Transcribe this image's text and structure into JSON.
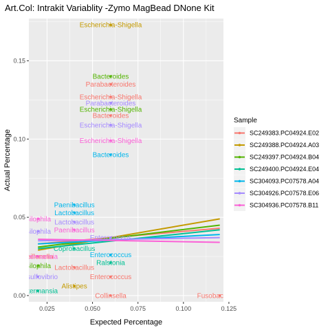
{
  "chart_data": {
    "type": "scatter",
    "title": "Art.Col: Intrakit Variablity -Zymo MagBead DNone Kit",
    "xlabel": "Expected Percentage",
    "ylabel": "Actual Percentage",
    "xlim": [
      0.015,
      0.122
    ],
    "ylim": [
      -0.004,
      0.177
    ],
    "x_ticks": [
      0.025,
      0.05,
      0.075,
      0.1,
      0.125
    ],
    "x_tick_labels": [
      "0.025",
      "0.050",
      "0.075",
      "0.100",
      "0.125"
    ],
    "y_ticks": [
      0.0,
      0.05,
      0.1,
      0.15
    ],
    "y_tick_labels": [
      "0.00",
      "0.05",
      "0.10",
      "0.15"
    ],
    "grid": true,
    "legend": {
      "title": "Sample",
      "position": "right"
    },
    "series": [
      {
        "name": "SC249383.PC04924.E02",
        "color": "#F8766D",
        "trend": [
          [
            0.02,
            0.033
          ],
          [
            0.12,
            0.043
          ]
        ],
        "points": [
          {
            "x": 0.06,
            "y": 0.135,
            "label": "Parabacteroides"
          },
          {
            "x": 0.06,
            "y": 0.127,
            "label": "Escherichia-Shigella"
          },
          {
            "x": 0.06,
            "y": 0.115,
            "label": "Bacteroides"
          },
          {
            "x": 0.06,
            "y": 0.012,
            "label": "Enterococcus"
          },
          {
            "x": 0.06,
            "y": 0.0,
            "label": "Collinsella"
          },
          {
            "x": 0.04,
            "y": 0.018,
            "label": "Lactobacillus"
          },
          {
            "x": 0.12,
            "y": 0.0,
            "label": "Fusobacterium"
          },
          {
            "x": 0.02,
            "y": 0.025,
            "label": "Veillonella"
          }
        ]
      },
      {
        "name": "SC249388.PC04924.A03",
        "color": "#C49A00",
        "trend": [
          [
            0.02,
            0.029
          ],
          [
            0.12,
            0.049
          ]
        ],
        "points": [
          {
            "x": 0.06,
            "y": 0.173,
            "label": "Escherichia-Shigella"
          },
          {
            "x": 0.04,
            "y": 0.006,
            "label": "Alistipes"
          }
        ]
      },
      {
        "name": "SC249397.PC04924.B04",
        "color": "#53B400",
        "trend": [
          [
            0.02,
            0.031
          ],
          [
            0.12,
            0.045
          ]
        ],
        "points": [
          {
            "x": 0.06,
            "y": 0.14,
            "label": "Bacteroides"
          },
          {
            "x": 0.06,
            "y": 0.119,
            "label": "Escherichia-Shigella"
          },
          {
            "x": 0.02,
            "y": 0.019,
            "label": "Bilophila"
          }
        ]
      },
      {
        "name": "SC249400.PC04924.E04",
        "color": "#00C094",
        "trend": [
          [
            0.02,
            0.03
          ],
          [
            0.12,
            0.042
          ]
        ],
        "points": [
          {
            "x": 0.06,
            "y": 0.021,
            "label": "Ralstonia"
          },
          {
            "x": 0.04,
            "y": 0.03,
            "label": "Coprobacillus"
          },
          {
            "x": 0.02,
            "y": 0.003,
            "label": "Akkermansia"
          }
        ]
      },
      {
        "name": "SC304093.PC07578.A04",
        "color": "#00B6EB",
        "trend": [
          [
            0.02,
            0.033
          ],
          [
            0.12,
            0.039
          ]
        ],
        "points": [
          {
            "x": 0.06,
            "y": 0.09,
            "label": "Bacteroides"
          },
          {
            "x": 0.04,
            "y": 0.058,
            "label": "Paenibacillus"
          },
          {
            "x": 0.04,
            "y": 0.053,
            "label": "Lactobacillus"
          },
          {
            "x": 0.06,
            "y": 0.026,
            "label": "Enterococcus"
          }
        ]
      },
      {
        "name": "SC304926.PC07578.E06",
        "color": "#A58AFF",
        "trend": [
          [
            0.02,
            0.035
          ],
          [
            0.12,
            0.037
          ]
        ],
        "points": [
          {
            "x": 0.06,
            "y": 0.123,
            "label": "Parabacteroides"
          },
          {
            "x": 0.06,
            "y": 0.109,
            "label": "Escherichia-Shigella"
          },
          {
            "x": 0.04,
            "y": 0.047,
            "label": "Lactobacillus"
          },
          {
            "x": 0.06,
            "y": 0.037,
            "label": "Enterococcus"
          },
          {
            "x": 0.02,
            "y": 0.041,
            "label": "Bilophila"
          },
          {
            "x": 0.02,
            "y": 0.012,
            "label": "Desulfovibrio"
          }
        ]
      },
      {
        "name": "SC304936.PC07578.B11",
        "color": "#FB61D7",
        "trend": [
          [
            0.02,
            0.036
          ],
          [
            0.12,
            0.034
          ]
        ],
        "points": [
          {
            "x": 0.06,
            "y": 0.099,
            "label": "Escherichia-Shigella"
          },
          {
            "x": 0.04,
            "y": 0.042,
            "label": "Paenibacillus"
          },
          {
            "x": 0.02,
            "y": 0.049,
            "label": "Bilophila"
          },
          {
            "x": 0.02,
            "y": 0.025,
            "label": "Akkermansia"
          }
        ]
      }
    ]
  }
}
